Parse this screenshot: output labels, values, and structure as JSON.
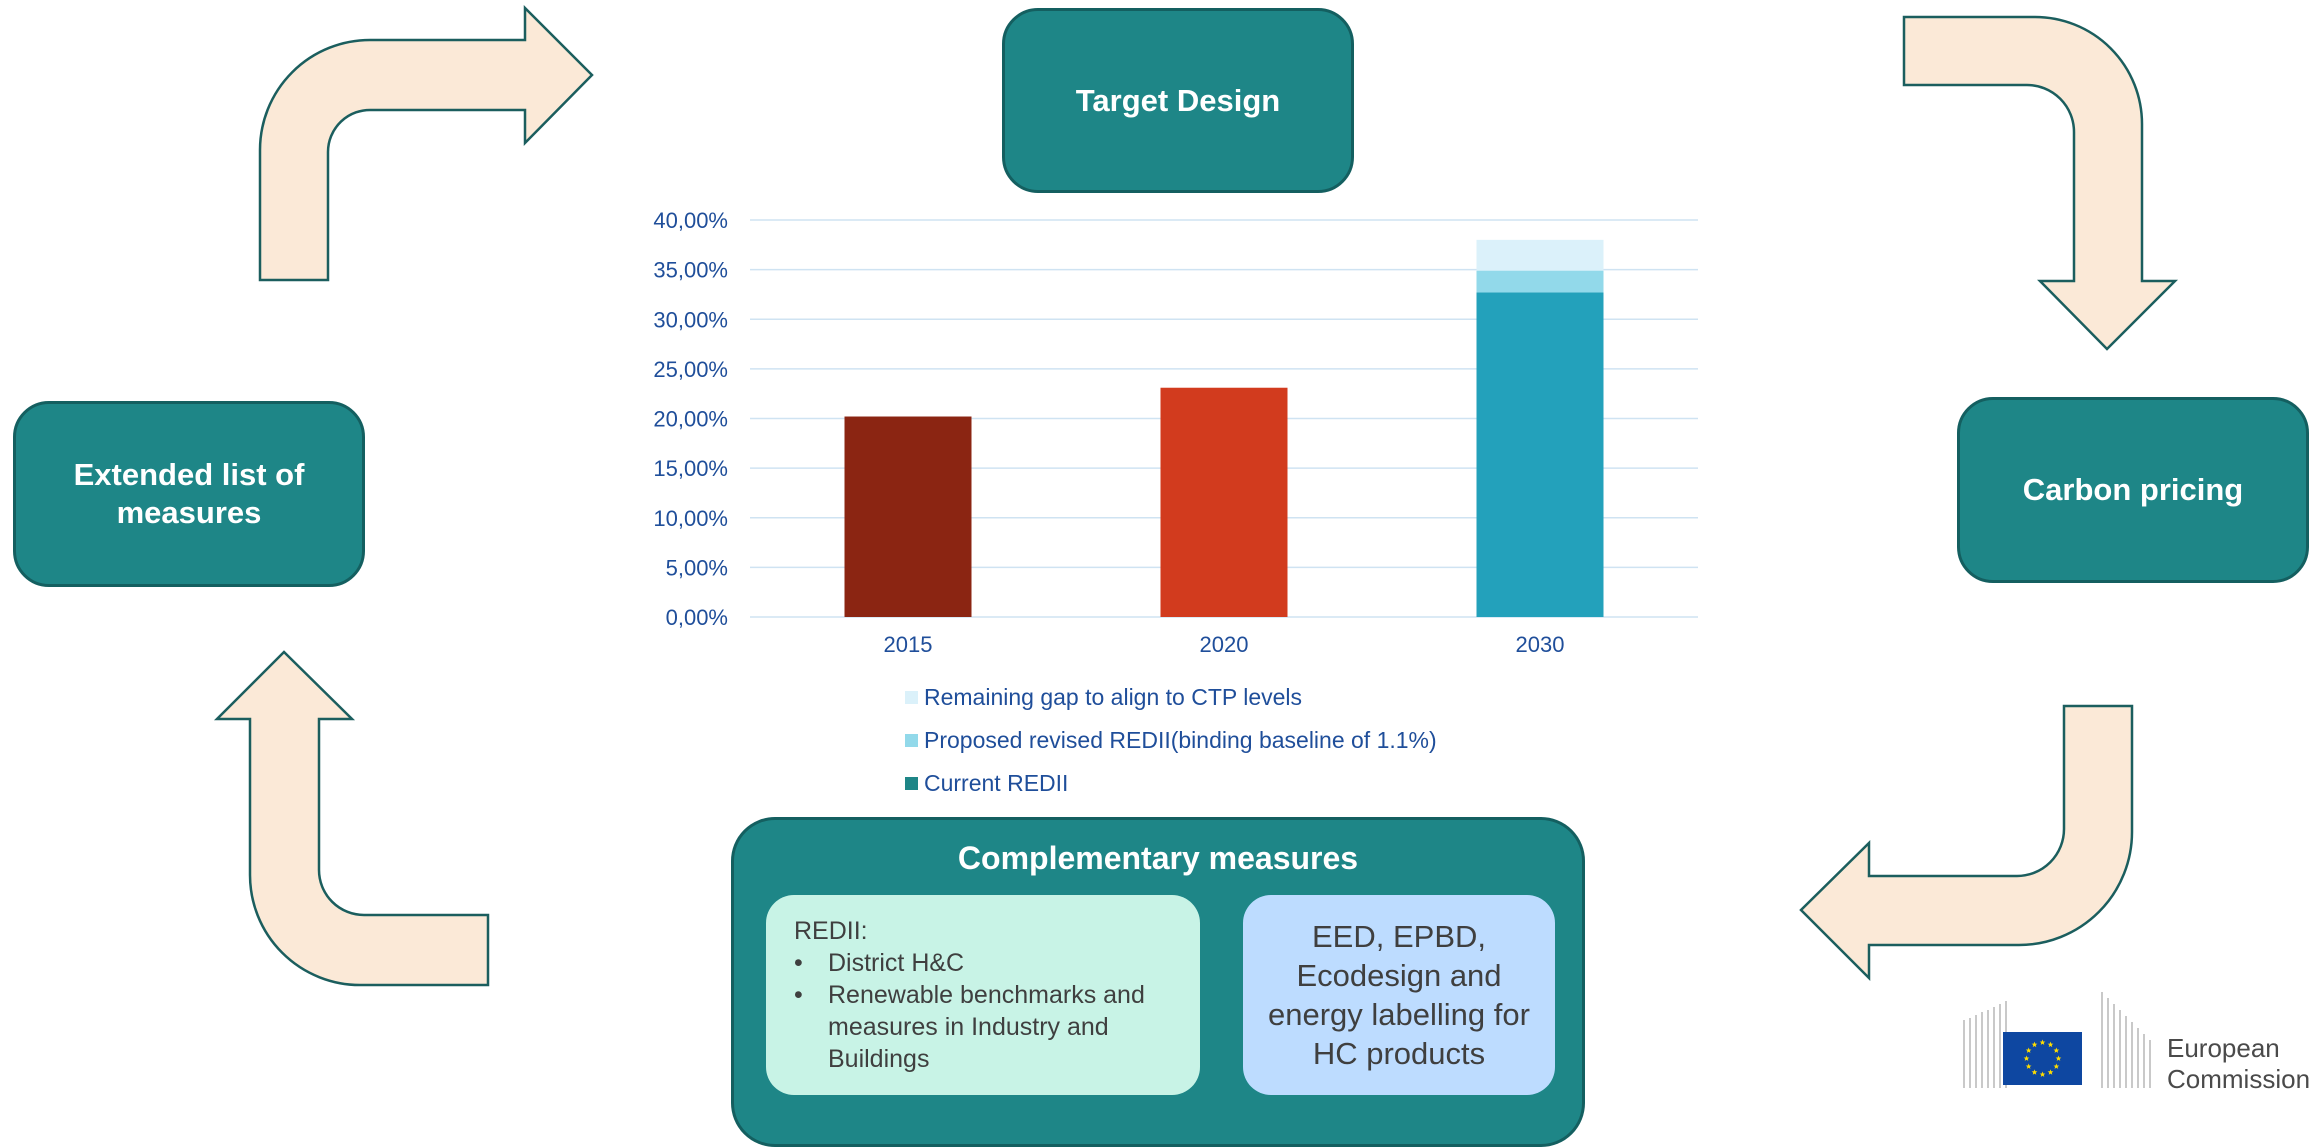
{
  "boxes": {
    "target_design": "Target Design",
    "extended_list": "Extended list of measures",
    "carbon_pricing": "Carbon pricing"
  },
  "complementary": {
    "title": "Complementary measures",
    "redii_heading": "REDII:",
    "redii_items": [
      "District H&C",
      "Renewable benchmarks and measures in Industry and Buildings"
    ],
    "eed_text": "EED, EPBD, Ecodesign and energy labelling for HC products"
  },
  "logo": {
    "line1": "European",
    "line2": "Commission"
  },
  "colors": {
    "teal": "#1e8687",
    "arrow_fill": "#fbe9d7",
    "arrow_stroke": "#1b5e5e",
    "bar_2015": "#8b2512",
    "bar_2020": "#d23b1e",
    "current_redii": "#23a1bb",
    "proposed_redii": "#92d9ea",
    "remaining_gap": "#dbf1fa"
  },
  "chart_data": {
    "type": "bar",
    "stacked": true,
    "categories": [
      "2015",
      "2020",
      "2030"
    ],
    "y_ticks": [
      "0,00%",
      "5,00%",
      "10,00%",
      "15,00%",
      "20,00%",
      "25,00%",
      "30,00%",
      "35,00%",
      "40,00%"
    ],
    "ylim": [
      0,
      40
    ],
    "grid": true,
    "legend_position": "bottom",
    "series": [
      {
        "name": "Current REDII",
        "values": [
          20.2,
          23.1,
          32.7
        ]
      },
      {
        "name": "Proposed revised REDII(binding baseline of 1.1%)",
        "values": [
          0,
          0,
          2.2
        ]
      },
      {
        "name": "Remaining gap to align to CTP levels",
        "values": [
          0,
          0,
          3.1
        ]
      }
    ],
    "legend_order": [
      "Remaining gap to align to CTP levels",
      "Proposed revised REDII(binding baseline of 1.1%)",
      "Current REDII"
    ]
  }
}
